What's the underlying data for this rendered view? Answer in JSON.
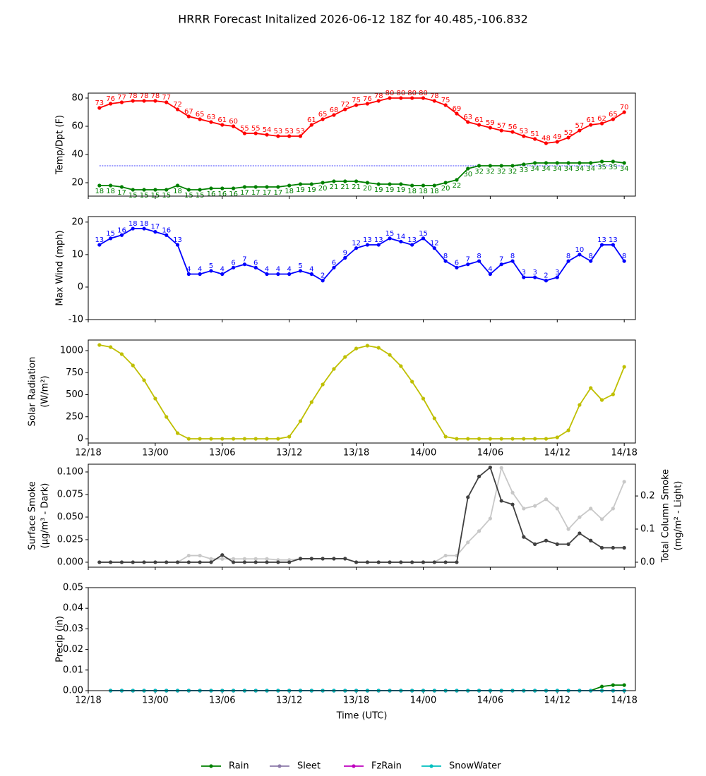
{
  "title": "HRRR Forecast Initalized 2026-06-12 18Z for 40.485,-106.832",
  "chart_data": [
    {
      "type": "line",
      "ylabel": [
        "Temp/Dpt (F)"
      ],
      "x": [
        1,
        2,
        3,
        4,
        5,
        6,
        7,
        8,
        9,
        10,
        11,
        12,
        13,
        14,
        15,
        16,
        17,
        18,
        19,
        20,
        21,
        22,
        23,
        24,
        25,
        26,
        27,
        28,
        29,
        30,
        31,
        32,
        33,
        34,
        35,
        36,
        37,
        38,
        39,
        40,
        41,
        42,
        43,
        44,
        45,
        46,
        47,
        48
      ],
      "xlim": [
        0,
        49
      ],
      "xticks": [
        0,
        6,
        12,
        18,
        24,
        30,
        36,
        42,
        48
      ],
      "xtick_labels": false,
      "ylim": [
        10.5,
        83.5
      ],
      "yticks": [
        20,
        40,
        60,
        80
      ],
      "hline": {
        "value": 32,
        "color": "#0000ff"
      },
      "series": [
        {
          "color": "#ff0000",
          "data_labels": "above",
          "values": [
            73,
            76,
            77,
            78,
            78,
            78,
            77,
            72,
            67,
            65,
            63,
            61,
            60,
            55,
            55,
            54,
            53,
            53,
            53,
            61,
            65,
            68,
            72,
            75,
            76,
            78,
            80,
            80,
            80,
            80,
            78,
            75,
            69,
            63,
            61,
            59,
            57,
            56,
            53,
            51,
            48,
            49,
            52,
            57,
            61,
            62,
            65,
            70
          ]
        },
        {
          "color": "#008000",
          "data_labels": "below",
          "values": [
            18,
            18,
            17,
            15,
            15,
            15,
            15,
            18,
            15,
            15,
            16,
            16,
            16,
            17,
            17,
            17,
            17,
            18,
            19,
            19,
            20,
            21,
            21,
            21,
            20,
            19,
            19,
            19,
            18,
            18,
            18,
            20,
            22,
            30,
            32,
            32,
            32,
            32,
            33,
            34,
            34,
            34,
            34,
            34,
            34,
            35,
            35,
            34
          ]
        }
      ]
    },
    {
      "type": "line",
      "ylabel": [
        "Max Wind (mph)"
      ],
      "x": [
        1,
        2,
        3,
        4,
        5,
        6,
        7,
        8,
        9,
        10,
        11,
        12,
        13,
        14,
        15,
        16,
        17,
        18,
        19,
        20,
        21,
        22,
        23,
        24,
        25,
        26,
        27,
        28,
        29,
        30,
        31,
        32,
        33,
        34,
        35,
        36,
        37,
        38,
        39,
        40,
        41,
        42,
        43,
        44,
        45,
        46,
        47,
        48
      ],
      "xlim": [
        0,
        49
      ],
      "xticks": [
        0,
        6,
        12,
        18,
        24,
        30,
        36,
        42,
        48
      ],
      "xtick_labels": false,
      "ylim": [
        -10,
        21.7
      ],
      "yticks": [
        -10,
        0,
        10,
        20
      ],
      "series": [
        {
          "color": "#0000ff",
          "data_labels": "above",
          "values": [
            13,
            15,
            16,
            18,
            18,
            17,
            16,
            13,
            4,
            4,
            5,
            4,
            6,
            7,
            6,
            4,
            4,
            4,
            5,
            4,
            2,
            6,
            9,
            12,
            13,
            13,
            15,
            14,
            13,
            15,
            12,
            8,
            6,
            7,
            8,
            4,
            7,
            8,
            3,
            3,
            2,
            3,
            8,
            10,
            8,
            13,
            13,
            8
          ]
        }
      ]
    },
    {
      "type": "line",
      "ylabel": [
        "Solar Radiation",
        "(W/m²)"
      ],
      "x": [
        1,
        2,
        3,
        4,
        5,
        6,
        7,
        8,
        9,
        10,
        11,
        12,
        13,
        14,
        15,
        16,
        17,
        18,
        19,
        20,
        21,
        22,
        23,
        24,
        25,
        26,
        27,
        28,
        29,
        30,
        31,
        32,
        33,
        34,
        35,
        36,
        37,
        38,
        39,
        40,
        41,
        42,
        43,
        44,
        45,
        46,
        47,
        48
      ],
      "xlim": [
        0,
        49
      ],
      "xticks": [
        {
          "value": 0,
          "label": "12/18"
        },
        {
          "value": 6,
          "label": "13/00"
        },
        {
          "value": 12,
          "label": "13/06"
        },
        {
          "value": 18,
          "label": "13/12"
        },
        {
          "value": 24,
          "label": "13/18"
        },
        {
          "value": 30,
          "label": "14/00"
        },
        {
          "value": 36,
          "label": "14/06"
        },
        {
          "value": 42,
          "label": "14/12"
        },
        {
          "value": 48,
          "label": "14/18"
        }
      ],
      "ylim": [
        -48,
        1120
      ],
      "yticks": [
        0,
        250,
        500,
        750,
        1000
      ],
      "series": [
        {
          "color": "#bfbf00",
          "values": [
            1064,
            1040,
            960,
            832,
            664,
            456,
            248,
            64,
            0,
            0,
            0,
            0,
            0,
            0,
            0,
            0,
            0,
            24,
            200,
            416,
            616,
            792,
            928,
            1024,
            1056,
            1032,
            952,
            824,
            648,
            456,
            232,
            24,
            0,
            0,
            0,
            0,
            0,
            0,
            0,
            0,
            0,
            16,
            96,
            384,
            576,
            440,
            504,
            816
          ]
        }
      ]
    },
    {
      "type": "line",
      "ylabel": [
        "Surface Smoke",
        "(μg/m³ - Dark)"
      ],
      "y2label": [
        "Total Column Smoke",
        "(mg/m² - Light)"
      ],
      "x": [
        1,
        2,
        3,
        4,
        5,
        6,
        7,
        8,
        9,
        10,
        11,
        12,
        13,
        14,
        15,
        16,
        17,
        18,
        19,
        20,
        21,
        22,
        23,
        24,
        25,
        26,
        27,
        28,
        29,
        30,
        31,
        32,
        33,
        34,
        35,
        36,
        37,
        38,
        39,
        40,
        41,
        42,
        43,
        44,
        45,
        46,
        47,
        48
      ],
      "xlim": [
        0,
        49
      ],
      "xticks": [
        0,
        6,
        12,
        18,
        24,
        30,
        36,
        42,
        48
      ],
      "xtick_labels": false,
      "ylim": [
        -0.0055,
        0.1086
      ],
      "yticks": [
        {
          "value": 0,
          "label": "0.000"
        },
        {
          "value": 0.025,
          "label": "0.025"
        },
        {
          "value": 0.05,
          "label": "0.050"
        },
        {
          "value": 0.075,
          "label": "0.075"
        },
        {
          "value": 0.1,
          "label": "0.100"
        }
      ],
      "y2lim": [
        -0.015,
        0.296
      ],
      "y2ticks": [
        {
          "value": 0,
          "label": "0.0"
        },
        {
          "value": 0.1,
          "label": "0.1"
        },
        {
          "value": 0.2,
          "label": "0.2"
        }
      ],
      "series": [
        {
          "color": "#c8c8c8",
          "axis": "y2",
          "values": [
            0,
            0,
            0,
            0,
            0,
            0,
            0,
            0,
            0.02,
            0.02,
            0.01,
            0.01,
            0.01,
            0.01,
            0.01,
            0.01,
            0.007,
            0.007,
            0.01,
            0.01,
            0.01,
            0.01,
            0.01,
            0,
            0,
            0,
            0,
            0,
            0,
            0,
            0,
            0.02,
            0.02,
            0.06,
            0.094,
            0.132,
            0.285,
            0.21,
            0.162,
            0.17,
            0.19,
            0.162,
            0.1,
            0.136,
            0.162,
            0.13,
            0.162,
            0.243
          ]
        },
        {
          "color": "#404040",
          "values": [
            0,
            0,
            0,
            0,
            0,
            0,
            0,
            0,
            0,
            0,
            0,
            0.008,
            0,
            0,
            0,
            0,
            0,
            0,
            0.004,
            0.004,
            0.004,
            0.004,
            0.004,
            0,
            0,
            0,
            0,
            0,
            0,
            0,
            0,
            0,
            0,
            0.072,
            0.095,
            0.105,
            0.068,
            0.064,
            0.028,
            0.02,
            0.024,
            0.02,
            0.02,
            0.032,
            0.024,
            0.016,
            0.016,
            0.016
          ]
        }
      ]
    },
    {
      "type": "line",
      "ylabel": [
        "Precip (in)"
      ],
      "xlabel": "Time (UTC)",
      "legend": "below",
      "x": [
        2,
        3,
        4,
        5,
        6,
        7,
        8,
        9,
        10,
        11,
        12,
        13,
        14,
        15,
        16,
        17,
        18,
        19,
        20,
        21,
        22,
        23,
        24,
        25,
        26,
        27,
        28,
        29,
        30,
        31,
        32,
        33,
        34,
        35,
        36,
        37,
        38,
        39,
        40,
        41,
        42,
        43,
        44,
        45,
        46,
        47,
        48
      ],
      "xlim": [
        0,
        49
      ],
      "xticks": [
        {
          "value": 0,
          "label": "12/18"
        },
        {
          "value": 6,
          "label": "13/00"
        },
        {
          "value": 12,
          "label": "13/06"
        },
        {
          "value": 18,
          "label": "13/12"
        },
        {
          "value": 24,
          "label": "13/18"
        },
        {
          "value": 30,
          "label": "14/00"
        },
        {
          "value": 36,
          "label": "14/06"
        },
        {
          "value": 42,
          "label": "14/12"
        },
        {
          "value": 48,
          "label": "14/18"
        }
      ],
      "ylim": [
        0,
        0.05
      ],
      "yticks": [
        {
          "value": 0,
          "label": "0.00"
        },
        {
          "value": 0.01,
          "label": "0.01"
        },
        {
          "value": 0.02,
          "label": "0.02"
        },
        {
          "value": 0.03,
          "label": "0.03"
        },
        {
          "value": 0.04,
          "label": "0.04"
        },
        {
          "value": 0.05,
          "label": "0.05"
        }
      ],
      "series": [
        {
          "name": "Rain",
          "color": "#008000",
          "values": [
            0,
            0,
            0,
            0,
            0,
            0,
            0,
            0,
            0,
            0,
            0,
            0,
            0,
            0,
            0,
            0,
            0,
            0,
            0,
            0,
            0,
            0,
            0,
            0,
            0,
            0,
            0,
            0,
            0,
            0,
            0,
            0,
            0,
            0,
            0,
            0,
            0,
            0,
            0,
            0,
            0,
            0,
            0,
            0,
            0.002,
            0.0027,
            0.0027
          ]
        },
        {
          "name": "Sleet",
          "color": "#8c7aa9",
          "values": [
            0,
            0,
            0,
            0,
            0,
            0,
            0,
            0,
            0,
            0,
            0,
            0,
            0,
            0,
            0,
            0,
            0,
            0,
            0,
            0,
            0,
            0,
            0,
            0,
            0,
            0,
            0,
            0,
            0,
            0,
            0,
            0,
            0,
            0,
            0,
            0,
            0,
            0,
            0,
            0,
            0,
            0,
            0,
            0,
            0,
            0,
            0
          ]
        },
        {
          "name": "FzRain",
          "color": "#bf00bf",
          "values": [
            0,
            0,
            0,
            0,
            0,
            0,
            0,
            0,
            0,
            0,
            0,
            0,
            0,
            0,
            0,
            0,
            0,
            0,
            0,
            0,
            0,
            0,
            0,
            0,
            0,
            0,
            0,
            0,
            0,
            0,
            0,
            0,
            0,
            0,
            0,
            0,
            0,
            0,
            0,
            0,
            0,
            0,
            0,
            0,
            0,
            0,
            0
          ]
        },
        {
          "name": "SnowWater",
          "color": "#00bfbf",
          "values": [
            0,
            0,
            0,
            0,
            0,
            0,
            0,
            0,
            0,
            0,
            0,
            0,
            0,
            0,
            0,
            0,
            0,
            0,
            0,
            0,
            0,
            0,
            0,
            0,
            0,
            0,
            0,
            0,
            0,
            0,
            0,
            0,
            0,
            0,
            0,
            0,
            0,
            0,
            0,
            0,
            0,
            0,
            0,
            0,
            0,
            0,
            0
          ]
        }
      ]
    }
  ]
}
